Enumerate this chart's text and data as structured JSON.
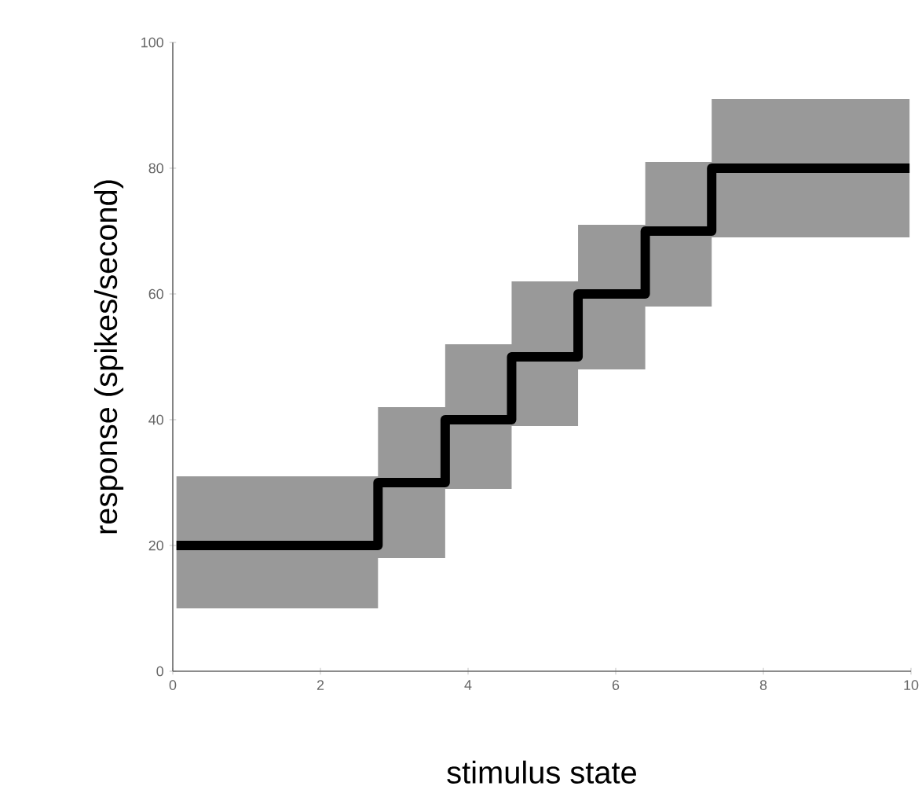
{
  "chart_data": {
    "type": "step",
    "xlabel": "stimulus state",
    "ylabel": "response (spikes/second)",
    "xlim": [
      0,
      10
    ],
    "ylim": [
      0,
      100
    ],
    "xticks": [
      0,
      2,
      4,
      6,
      8,
      10
    ],
    "yticks": [
      0,
      20,
      40,
      60,
      80,
      100
    ],
    "series": [
      {
        "color": "#000000",
        "x": [
          0.05,
          2.78,
          3.69,
          4.59,
          5.49,
          6.4,
          7.3,
          9.98
        ],
        "values": [
          20,
          30,
          40,
          50,
          60,
          70,
          80,
          80
        ],
        "lower": [
          10,
          18,
          29,
          39,
          48,
          58,
          69,
          69
        ],
        "upper": [
          31,
          42,
          52,
          62,
          71,
          81,
          91,
          91
        ]
      }
    ]
  }
}
